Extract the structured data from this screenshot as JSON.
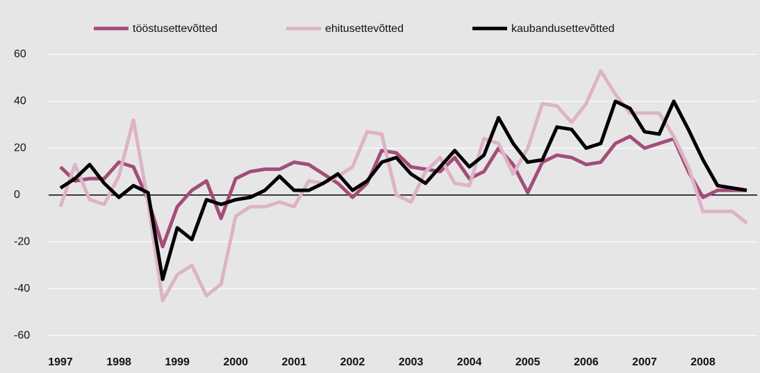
{
  "chart_data": {
    "type": "line",
    "categories": [
      "1997",
      null,
      null,
      null,
      "1998",
      null,
      null,
      null,
      "1999",
      null,
      null,
      null,
      "2000",
      null,
      null,
      null,
      "2001",
      null,
      null,
      null,
      "2002",
      null,
      null,
      null,
      "2003",
      null,
      null,
      null,
      "2004",
      null,
      null,
      null,
      "2005",
      null,
      null,
      null,
      "2006",
      null,
      null,
      null,
      "2007",
      null,
      null,
      null,
      "2008",
      null,
      null,
      null
    ],
    "series": [
      {
        "name": "tööstusettevõtted",
        "color": "#a34d78",
        "values": [
          12,
          6,
          7,
          7,
          14,
          12,
          -2,
          -22,
          -5,
          2,
          6,
          -10,
          7,
          10,
          11,
          11,
          14,
          13,
          9,
          5,
          -1,
          5,
          19,
          18,
          12,
          11,
          10,
          16,
          7,
          10,
          20,
          13,
          1,
          14,
          17,
          16,
          13,
          14,
          22,
          25,
          20,
          22,
          24,
          10,
          -1,
          2,
          2,
          2
        ]
      },
      {
        "name": "ehitusettevõtted",
        "color": "#ddb3c6",
        "values": [
          -5,
          13,
          -2,
          -4,
          8,
          32,
          -3,
          -45,
          -34,
          -30,
          -43,
          -38,
          -9,
          -5,
          -5,
          -3,
          -5,
          6,
          5,
          8,
          12,
          27,
          26,
          0,
          -3,
          10,
          16,
          5,
          4,
          24,
          22,
          9,
          20,
          39,
          38,
          31,
          39,
          53,
          43,
          35,
          35,
          35,
          25,
          12,
          -7,
          -7,
          -7,
          -12
        ]
      },
      {
        "name": "kaubandusettevõtted",
        "color": "#000000",
        "values": [
          3,
          7,
          13,
          5,
          -1,
          4,
          1,
          -36,
          -14,
          -19,
          -2,
          -4,
          -2,
          -1,
          2,
          8,
          2,
          2,
          5,
          9,
          2,
          6,
          14,
          16,
          9,
          5,
          12,
          19,
          12,
          17,
          33,
          22,
          14,
          15,
          29,
          28,
          20,
          22,
          40,
          37,
          27,
          26,
          40,
          28,
          15,
          4,
          3,
          2
        ]
      }
    ],
    "ylim": [
      -65,
      65
    ],
    "yticks": [
      -60,
      -40,
      -20,
      0,
      20,
      40,
      60
    ],
    "grid": true,
    "legend": "top"
  }
}
